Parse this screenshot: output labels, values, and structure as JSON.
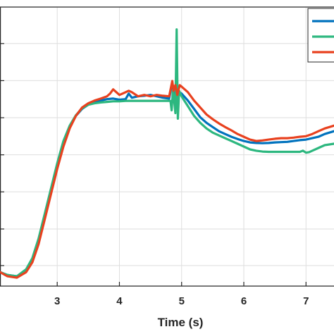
{
  "chart_data": {
    "type": "line",
    "title": "",
    "xlabel": "Time (s)",
    "ylabel": "",
    "xlim": [
      2.08,
      7.45
    ],
    "ylim": [
      0,
      1
    ],
    "x_ticks": [
      3,
      4,
      5,
      6,
      7
    ],
    "x_tick_labels": [
      "3",
      "4",
      "5",
      "6",
      "7"
    ],
    "y_tick_values": [
      0.0735,
      0.2046,
      0.3376,
      0.4705,
      0.6034,
      0.7363,
      0.8692
    ],
    "grid": true,
    "legend_placement": "top-right",
    "series": [
      {
        "color": "#0072BD",
        "points": [
          [
            2.08,
            0.05
          ],
          [
            2.2,
            0.04
          ],
          [
            2.35,
            0.035
          ],
          [
            2.5,
            0.055
          ],
          [
            2.6,
            0.09
          ],
          [
            2.7,
            0.16
          ],
          [
            2.8,
            0.25
          ],
          [
            2.9,
            0.34
          ],
          [
            3.0,
            0.43
          ],
          [
            3.1,
            0.51
          ],
          [
            3.2,
            0.57
          ],
          [
            3.3,
            0.61
          ],
          [
            3.4,
            0.635
          ],
          [
            3.5,
            0.65
          ],
          [
            3.6,
            0.66
          ],
          [
            3.7,
            0.665
          ],
          [
            3.8,
            0.67
          ],
          [
            3.9,
            0.672
          ],
          [
            4.0,
            0.668
          ],
          [
            4.1,
            0.67
          ],
          [
            4.15,
            0.69
          ],
          [
            4.2,
            0.675
          ],
          [
            4.3,
            0.68
          ],
          [
            4.4,
            0.682
          ],
          [
            4.5,
            0.685
          ],
          [
            4.6,
            0.68
          ],
          [
            4.7,
            0.675
          ],
          [
            4.8,
            0.672
          ],
          [
            4.85,
            0.73
          ],
          [
            4.88,
            0.68
          ],
          [
            4.92,
            0.7
          ],
          [
            5.0,
            0.69
          ],
          [
            5.1,
            0.665
          ],
          [
            5.2,
            0.635
          ],
          [
            5.3,
            0.605
          ],
          [
            5.4,
            0.585
          ],
          [
            5.5,
            0.57
          ],
          [
            5.6,
            0.555
          ],
          [
            5.7,
            0.545
          ],
          [
            5.8,
            0.535
          ],
          [
            5.9,
            0.527
          ],
          [
            6.0,
            0.52
          ],
          [
            6.1,
            0.515
          ],
          [
            6.2,
            0.513
          ],
          [
            6.3,
            0.512
          ],
          [
            6.4,
            0.513
          ],
          [
            6.5,
            0.515
          ],
          [
            6.6,
            0.516
          ],
          [
            6.7,
            0.517
          ],
          [
            6.8,
            0.52
          ],
          [
            6.9,
            0.523
          ],
          [
            7.0,
            0.525
          ],
          [
            7.1,
            0.53
          ],
          [
            7.2,
            0.535
          ],
          [
            7.3,
            0.545
          ],
          [
            7.45,
            0.555
          ]
        ]
      },
      {
        "color": "#2DB77F",
        "points": [
          [
            2.08,
            0.05
          ],
          [
            2.2,
            0.04
          ],
          [
            2.35,
            0.035
          ],
          [
            2.5,
            0.06
          ],
          [
            2.6,
            0.1
          ],
          [
            2.7,
            0.17
          ],
          [
            2.8,
            0.26
          ],
          [
            2.9,
            0.35
          ],
          [
            3.0,
            0.44
          ],
          [
            3.1,
            0.52
          ],
          [
            3.2,
            0.575
          ],
          [
            3.3,
            0.612
          ],
          [
            3.4,
            0.637
          ],
          [
            3.5,
            0.65
          ],
          [
            3.6,
            0.655
          ],
          [
            3.7,
            0.658
          ],
          [
            3.8,
            0.66
          ],
          [
            3.9,
            0.662
          ],
          [
            4.0,
            0.662
          ],
          [
            4.1,
            0.664
          ],
          [
            4.2,
            0.664
          ],
          [
            4.3,
            0.664
          ],
          [
            4.4,
            0.664
          ],
          [
            4.5,
            0.664
          ],
          [
            4.6,
            0.664
          ],
          [
            4.7,
            0.664
          ],
          [
            4.82,
            0.664
          ],
          [
            4.84,
            0.63
          ],
          [
            4.86,
            0.7
          ],
          [
            4.88,
            0.665
          ],
          [
            4.9,
            0.62
          ],
          [
            4.92,
            0.92
          ],
          [
            4.94,
            0.6
          ],
          [
            4.96,
            0.7
          ],
          [
            5.0,
            0.68
          ],
          [
            5.1,
            0.645
          ],
          [
            5.2,
            0.61
          ],
          [
            5.3,
            0.585
          ],
          [
            5.4,
            0.565
          ],
          [
            5.5,
            0.55
          ],
          [
            5.6,
            0.54
          ],
          [
            5.7,
            0.53
          ],
          [
            5.8,
            0.52
          ],
          [
            5.9,
            0.51
          ],
          [
            6.0,
            0.5
          ],
          [
            6.1,
            0.49
          ],
          [
            6.2,
            0.485
          ],
          [
            6.3,
            0.482
          ],
          [
            6.4,
            0.481
          ],
          [
            6.5,
            0.481
          ],
          [
            6.6,
            0.481
          ],
          [
            6.7,
            0.481
          ],
          [
            6.8,
            0.481
          ],
          [
            6.9,
            0.481
          ],
          [
            6.95,
            0.485
          ],
          [
            7.0,
            0.478
          ],
          [
            7.05,
            0.48
          ],
          [
            7.1,
            0.485
          ],
          [
            7.2,
            0.495
          ],
          [
            7.3,
            0.505
          ],
          [
            7.45,
            0.51
          ]
        ]
      },
      {
        "color": "#E8411F",
        "points": [
          [
            2.08,
            0.05
          ],
          [
            2.2,
            0.035
          ],
          [
            2.35,
            0.03
          ],
          [
            2.5,
            0.05
          ],
          [
            2.6,
            0.085
          ],
          [
            2.7,
            0.15
          ],
          [
            2.8,
            0.24
          ],
          [
            2.9,
            0.33
          ],
          [
            3.0,
            0.42
          ],
          [
            3.1,
            0.5
          ],
          [
            3.2,
            0.565
          ],
          [
            3.3,
            0.61
          ],
          [
            3.4,
            0.64
          ],
          [
            3.5,
            0.655
          ],
          [
            3.6,
            0.665
          ],
          [
            3.7,
            0.672
          ],
          [
            3.8,
            0.68
          ],
          [
            3.85,
            0.69
          ],
          [
            3.9,
            0.705
          ],
          [
            3.95,
            0.695
          ],
          [
            4.0,
            0.685
          ],
          [
            4.05,
            0.69
          ],
          [
            4.1,
            0.695
          ],
          [
            4.15,
            0.7
          ],
          [
            4.2,
            0.695
          ],
          [
            4.3,
            0.68
          ],
          [
            4.4,
            0.685
          ],
          [
            4.5,
            0.68
          ],
          [
            4.6,
            0.685
          ],
          [
            4.7,
            0.682
          ],
          [
            4.8,
            0.68
          ],
          [
            4.85,
            0.735
          ],
          [
            4.87,
            0.7
          ],
          [
            4.9,
            0.72
          ],
          [
            4.93,
            0.685
          ],
          [
            4.97,
            0.72
          ],
          [
            5.0,
            0.715
          ],
          [
            5.1,
            0.695
          ],
          [
            5.2,
            0.665
          ],
          [
            5.3,
            0.64
          ],
          [
            5.4,
            0.615
          ],
          [
            5.5,
            0.598
          ],
          [
            5.6,
            0.583
          ],
          [
            5.7,
            0.57
          ],
          [
            5.8,
            0.558
          ],
          [
            5.9,
            0.545
          ],
          [
            6.0,
            0.535
          ],
          [
            6.1,
            0.525
          ],
          [
            6.2,
            0.52
          ],
          [
            6.3,
            0.522
          ],
          [
            6.4,
            0.525
          ],
          [
            6.5,
            0.528
          ],
          [
            6.6,
            0.53
          ],
          [
            6.7,
            0.53
          ],
          [
            6.8,
            0.532
          ],
          [
            6.9,
            0.535
          ],
          [
            7.0,
            0.537
          ],
          [
            7.1,
            0.545
          ],
          [
            7.2,
            0.555
          ],
          [
            7.3,
            0.565
          ],
          [
            7.45,
            0.575
          ]
        ]
      }
    ]
  }
}
